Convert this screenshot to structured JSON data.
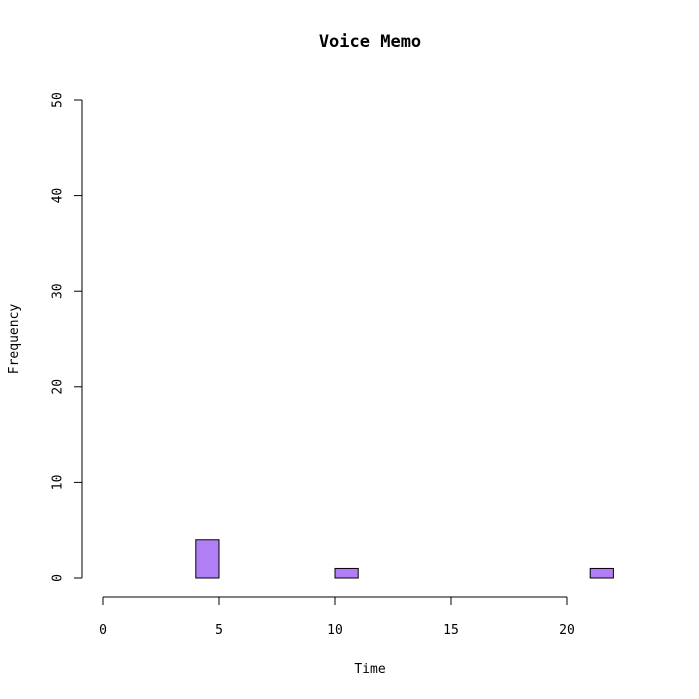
{
  "chart_data": {
    "type": "bar",
    "title": "Voice Memo",
    "xlabel": "Time",
    "ylabel": "Frequency",
    "x_ticks": [
      "0",
      "5",
      "10",
      "15",
      "20"
    ],
    "y_ticks": [
      "0",
      "10",
      "20",
      "30",
      "40",
      "50"
    ],
    "xlim": [
      0,
      24
    ],
    "ylim": [
      0,
      50
    ],
    "bin_width": 1,
    "bins": [
      {
        "start": 4,
        "end": 5,
        "count": 4
      },
      {
        "start": 10,
        "end": 11,
        "count": 1
      },
      {
        "start": 21,
        "end": 22,
        "count": 1
      }
    ],
    "bar_color": "#b07ff5",
    "grid": false,
    "legend": "none"
  }
}
